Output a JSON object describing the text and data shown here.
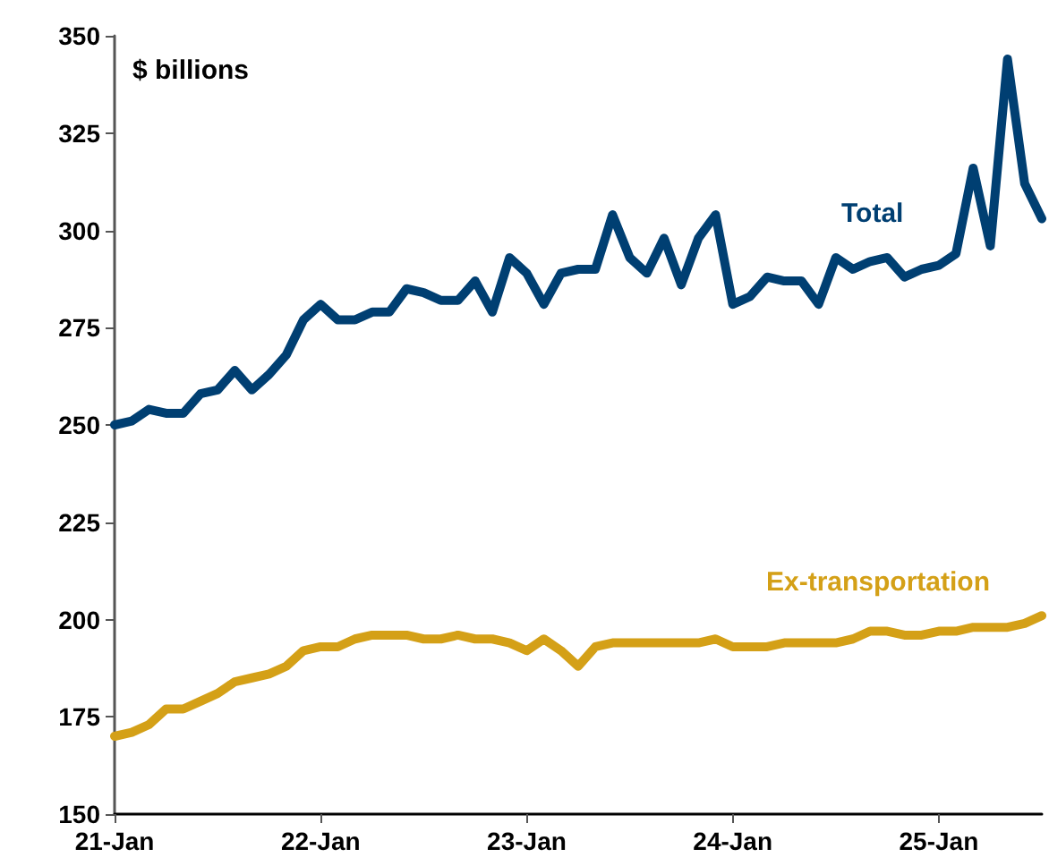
{
  "chart_data": {
    "type": "line",
    "ylabel": "$ billions",
    "categories": [
      "21-Jan",
      null,
      null,
      null,
      null,
      null,
      null,
      null,
      null,
      null,
      null,
      null,
      "22-Jan",
      null,
      null,
      null,
      null,
      null,
      null,
      null,
      null,
      null,
      null,
      null,
      "23-Jan",
      null,
      null,
      null,
      null,
      null,
      null,
      null,
      null,
      null,
      null,
      null,
      "24-Jan",
      null,
      null,
      null,
      null,
      null,
      null,
      null,
      null,
      null,
      null,
      null,
      "25-Jan",
      null,
      null,
      null,
      null,
      null,
      null
    ],
    "series": [
      {
        "name": "Total",
        "color": "#003f72",
        "values": [
          250,
          251,
          254,
          253,
          253,
          258,
          259,
          264,
          259,
          263,
          268,
          277,
          281,
          277,
          277,
          279,
          279,
          285,
          284,
          282,
          282,
          287,
          279,
          293,
          289,
          281,
          289,
          290,
          290,
          304,
          293,
          289,
          298,
          286,
          298,
          304,
          281,
          283,
          288,
          287,
          287,
          281,
          293,
          290,
          292,
          293,
          288,
          290,
          291,
          294,
          316,
          296,
          344,
          312,
          303
        ]
      },
      {
        "name": "Ex-transportation",
        "color": "#d4a017",
        "values": [
          170,
          171,
          173,
          177,
          177,
          179,
          181,
          184,
          185,
          186,
          188,
          192,
          193,
          193,
          195,
          196,
          196,
          196,
          195,
          195,
          196,
          195,
          195,
          194,
          192,
          195,
          192,
          188,
          193,
          194,
          194,
          194,
          194,
          194,
          194,
          195,
          193,
          193,
          193,
          194,
          194,
          194,
          194,
          195,
          197,
          197,
          196,
          196,
          197,
          197,
          198,
          198,
          198,
          199,
          201
        ]
      }
    ],
    "ylim": [
      150,
      350
    ],
    "yticks": [
      150,
      175,
      200,
      225,
      250,
      275,
      300,
      325,
      350
    ],
    "grid": false,
    "legend": false,
    "marker": "none",
    "line_style": "solid"
  }
}
